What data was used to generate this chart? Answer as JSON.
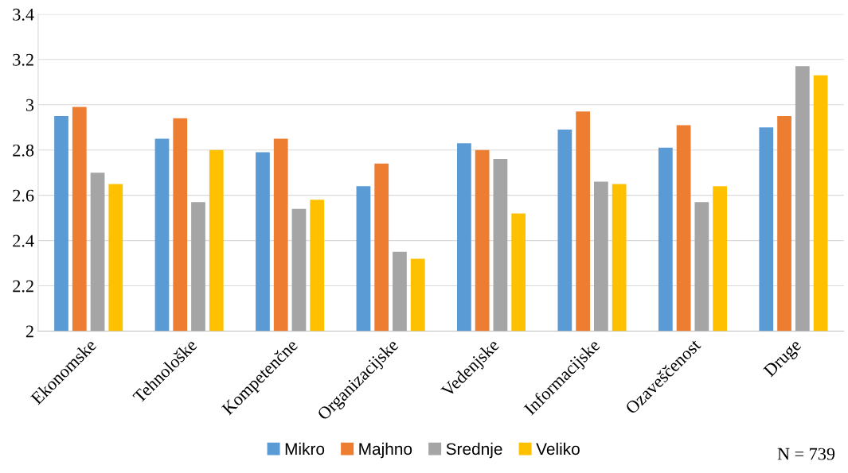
{
  "chart_data": {
    "type": "bar",
    "categories": [
      "Ekonomske",
      "Tehnološke",
      "Kompetenčne",
      "Organizacijske",
      "Vedenjske",
      "Informacijske",
      "Ozaveščenost",
      "Druge"
    ],
    "series": [
      {
        "name": "Mikro",
        "color": "#5b9bd5",
        "values": [
          2.95,
          2.85,
          2.79,
          2.64,
          2.83,
          2.89,
          2.81,
          2.9
        ]
      },
      {
        "name": "Majhno",
        "color": "#ed7d31",
        "values": [
          2.99,
          2.94,
          2.85,
          2.74,
          2.8,
          2.97,
          2.91,
          2.95
        ]
      },
      {
        "name": "Srednje",
        "color": "#a5a5a5",
        "values": [
          2.7,
          2.57,
          2.54,
          2.35,
          2.76,
          2.66,
          2.57,
          3.17
        ]
      },
      {
        "name": "Veliko",
        "color": "#ffc000",
        "values": [
          2.65,
          2.8,
          2.58,
          2.32,
          2.52,
          2.65,
          2.64,
          3.13
        ]
      }
    ],
    "ylim": [
      2,
      3.4
    ],
    "yticks": [
      2,
      2.2,
      2.4,
      2.6,
      2.8,
      3,
      3.2,
      3.4
    ],
    "grid": "y",
    "legend": "bottom",
    "annotations": [
      "N = 739"
    ]
  }
}
